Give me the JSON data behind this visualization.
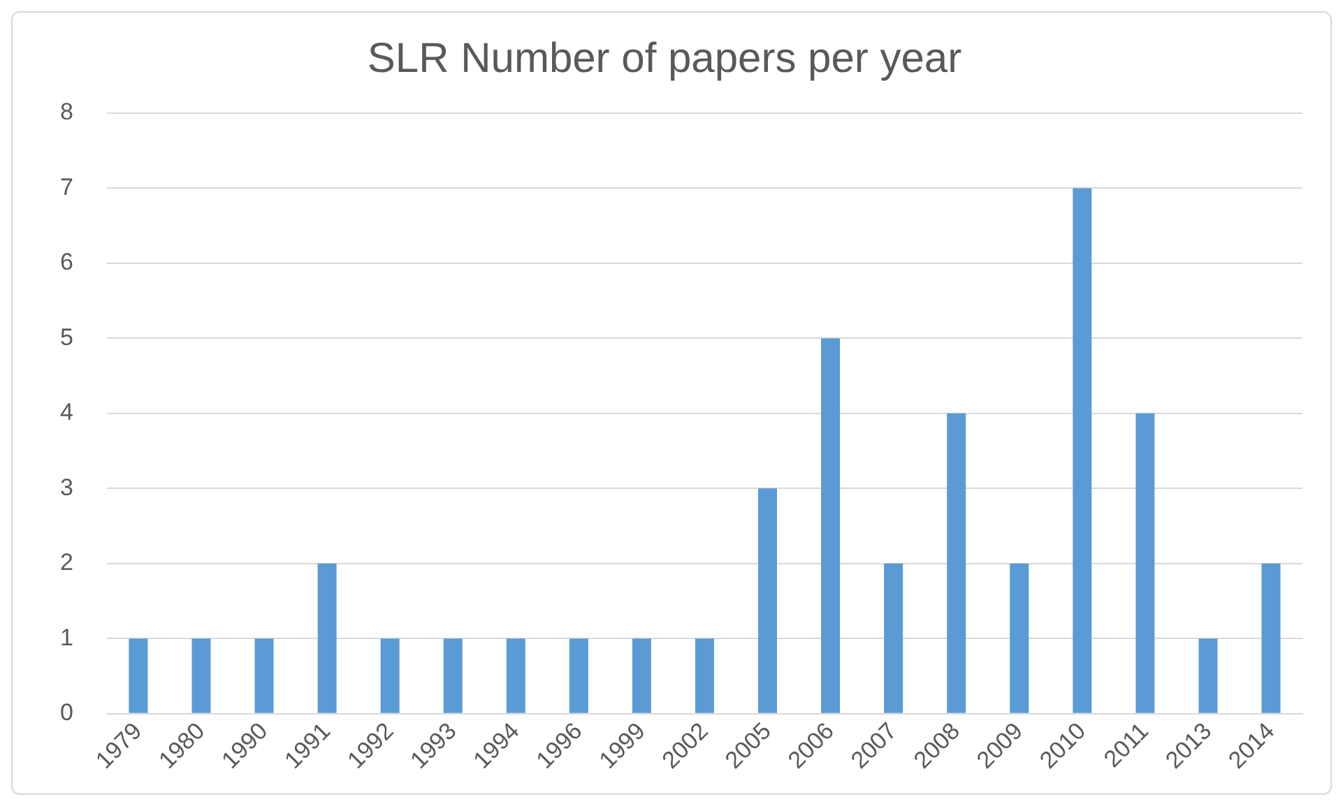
{
  "chart_data": {
    "type": "bar",
    "title": "SLR Number of papers per year",
    "categories": [
      "1979",
      "1980",
      "1990",
      "1991",
      "1992",
      "1993",
      "1994",
      "1996",
      "1999",
      "2002",
      "2005",
      "2006",
      "2007",
      "2008",
      "2009",
      "2010",
      "2011",
      "2013",
      "2014"
    ],
    "values": [
      1,
      1,
      1,
      2,
      1,
      1,
      1,
      1,
      1,
      1,
      3,
      5,
      2,
      4,
      2,
      7,
      4,
      1,
      2
    ],
    "color": "#5b9bd5",
    "ylim": [
      0,
      8
    ],
    "yticks": [
      0,
      1,
      2,
      3,
      4,
      5,
      6,
      7,
      8
    ],
    "grid": "y",
    "legend": false
  }
}
